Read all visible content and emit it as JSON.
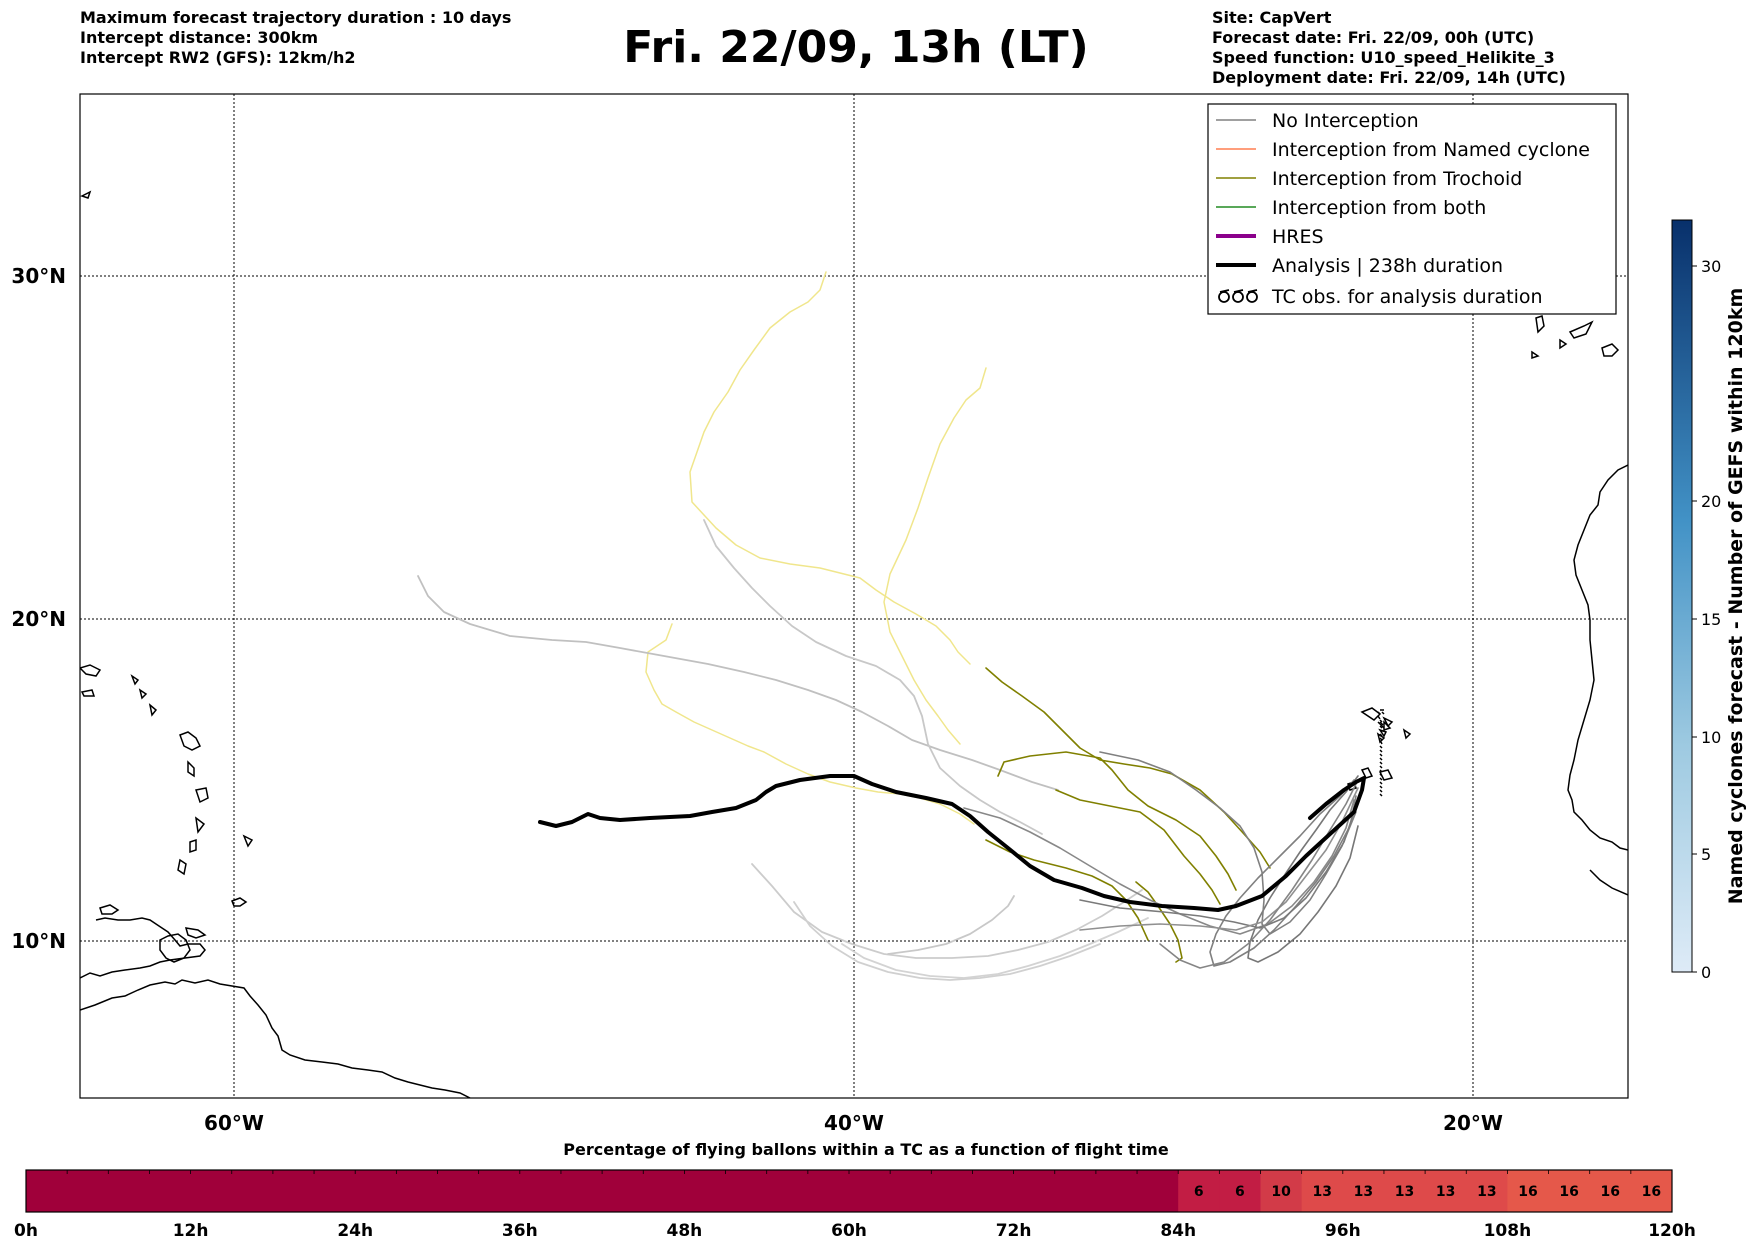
{
  "header": {
    "left": [
      "Maximum forecast trajectory duration : 10 days",
      "Intercept distance: 300km",
      "Intercept RW2 (GFS):  12km/h2"
    ],
    "right": [
      "Site: CapVert",
      "Forecast date: Fri. 22/09, 00h (UTC)",
      "Speed function: U10_speed_Helikite_3",
      "Deployment date: Fri. 22/09, 14h (UTC)"
    ],
    "title": "Fri. 22/09, 13h (LT)"
  },
  "map": {
    "lon_labels": [
      "60°W",
      "40°W",
      "20°W"
    ],
    "lat_labels": [
      "30°N",
      "20°N",
      "10°N"
    ]
  },
  "legend": {
    "items": [
      {
        "label": "No Interception",
        "color": "#808080"
      },
      {
        "label": "Interception from Named cyclone",
        "color": "#ff7f50"
      },
      {
        "label": "Interception from Trochoid",
        "color": "#808000"
      },
      {
        "label": "Interception from both",
        "color": "#228b22"
      },
      {
        "label": "HRES",
        "color": "#8b008b"
      },
      {
        "label": "Analysis | 238h duration",
        "color": "#000000"
      },
      {
        "label": "TC obs. for analysis duration",
        "color": "#000000"
      }
    ]
  },
  "colorbar": {
    "label": "Named cyclones forecast - Number of GEFS within 120km",
    "ticks": [
      "0",
      "5",
      "10",
      "15",
      "20",
      "30"
    ]
  },
  "time_bar": {
    "title": "Percentage of flying ballons within a TC as a function of flight time",
    "ticks": [
      "0h",
      "12h",
      "24h",
      "36h",
      "48h",
      "60h",
      "72h",
      "84h",
      "96h",
      "108h",
      "120h"
    ],
    "cells": [
      "",
      "",
      "",
      "",
      "",
      "",
      "",
      "",
      "",
      "",
      "",
      "",
      "",
      "",
      "",
      "",
      "",
      "",
      "",
      "",
      "",
      "",
      "",
      "",
      "",
      "",
      "",
      "",
      "6",
      "6",
      "10",
      "13",
      "13",
      "13",
      "13",
      "13",
      "16",
      "16",
      "16",
      "16"
    ]
  }
}
